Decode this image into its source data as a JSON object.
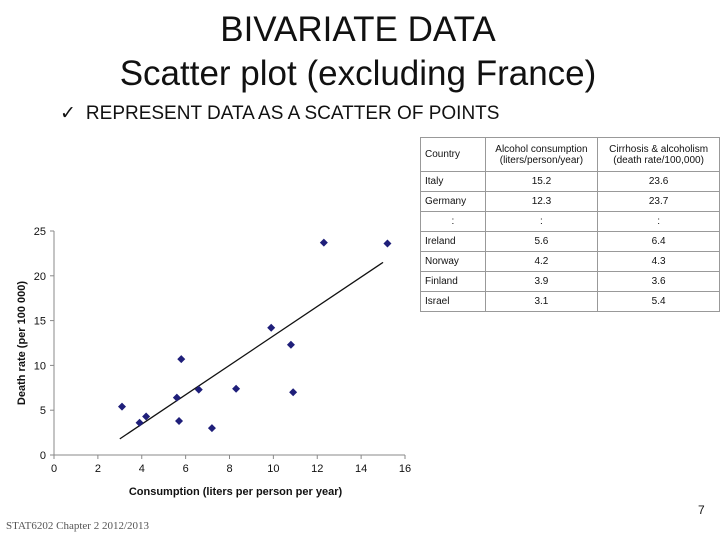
{
  "slide": {
    "title_line1": "BIVARIATE DATA",
    "title_line2": "Scatter plot (excluding France)",
    "bullet_text": "REPRESENT DATA AS A SCATTER OF POINTS",
    "bullet_icon": "checkmark-icon",
    "slide_number": "7",
    "footer": "STAT6202 Chapter 2 2012/2013"
  },
  "table": {
    "headers": [
      "Country",
      "Alcohol consumption (liters/person/year)",
      "Cirrhosis & alcoholism (death rate/100,000)"
    ],
    "rows": [
      [
        "Italy",
        "15.2",
        "23.6"
      ],
      [
        "Germany",
        "12.3",
        "23.7"
      ],
      [
        ":",
        ":",
        ":"
      ],
      [
        "Ireland",
        "5.6",
        "6.4"
      ],
      [
        "Norway",
        "4.2",
        "4.3"
      ],
      [
        "Finland",
        "3.9",
        "3.6"
      ],
      [
        "Israel",
        "3.1",
        "5.4"
      ]
    ]
  },
  "chart_data": {
    "type": "scatter",
    "title": "",
    "xlabel": "Consumption (liters per person per year)",
    "ylabel": "Death rate  (per 100 000)",
    "xlim": [
      0,
      16
    ],
    "ylim": [
      0,
      25
    ],
    "xticks": [
      0,
      2,
      4,
      6,
      8,
      10,
      12,
      14,
      16
    ],
    "yticks": [
      0,
      5,
      10,
      15,
      20,
      25
    ],
    "marker": "diamond",
    "marker_color": "#1f1f7a",
    "grid": false,
    "points": [
      {
        "x": 3.1,
        "y": 5.4
      },
      {
        "x": 3.9,
        "y": 3.6
      },
      {
        "x": 4.2,
        "y": 4.3
      },
      {
        "x": 5.6,
        "y": 6.4
      },
      {
        "x": 5.7,
        "y": 3.8
      },
      {
        "x": 5.8,
        "y": 10.7
      },
      {
        "x": 6.6,
        "y": 7.3
      },
      {
        "x": 7.2,
        "y": 3.0
      },
      {
        "x": 8.3,
        "y": 7.4
      },
      {
        "x": 9.9,
        "y": 14.2
      },
      {
        "x": 10.8,
        "y": 12.3
      },
      {
        "x": 10.9,
        "y": 7.0
      },
      {
        "x": 12.3,
        "y": 23.7
      },
      {
        "x": 15.2,
        "y": 23.6
      }
    ],
    "trendline": {
      "x": [
        3.0,
        15.0
      ],
      "y": [
        1.8,
        21.5
      ]
    }
  }
}
